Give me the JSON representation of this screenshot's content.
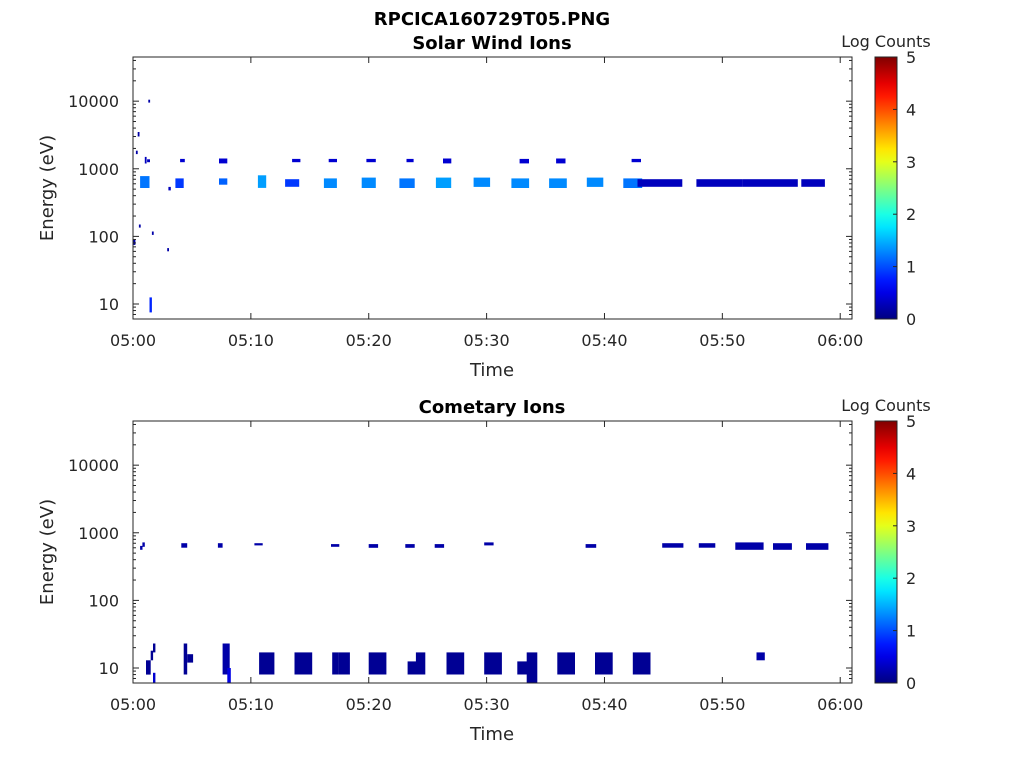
{
  "figure": {
    "filename_title": "RPCICA160729T05.PNG"
  },
  "panels": [
    {
      "id": "solar-wind",
      "title": "Solar Wind Ions",
      "xlabel": "Time",
      "ylabel": "Energy (eV)",
      "xticks": [
        "05:00",
        "05:10",
        "05:20",
        "05:30",
        "05:40",
        "05:50",
        "06:00"
      ],
      "yticks": [
        "10",
        "100",
        "1000",
        "10000"
      ],
      "colorbar": {
        "label": "Log Counts",
        "ticks": [
          "0",
          "1",
          "2",
          "3",
          "4",
          "5"
        ]
      }
    },
    {
      "id": "cometary",
      "title": "Cometary Ions",
      "xlabel": "Time",
      "ylabel": "Energy (eV)",
      "xticks": [
        "05:00",
        "05:10",
        "05:20",
        "05:30",
        "05:40",
        "05:50",
        "06:00"
      ],
      "yticks": [
        "10",
        "100",
        "1000",
        "10000"
      ],
      "colorbar": {
        "label": "Log Counts",
        "ticks": [
          "0",
          "1",
          "2",
          "3",
          "4",
          "5"
        ]
      }
    }
  ],
  "chart_data": [
    {
      "type": "heatmap",
      "title": "Solar Wind Ions",
      "xlabel": "Time",
      "ylabel": "Energy (eV)",
      "xlim_minutes": [
        0,
        61
      ],
      "ylim": [
        6,
        45000
      ],
      "yscale": "log",
      "colormap": "jet",
      "clim": [
        0,
        5
      ],
      "colorbar_label": "Log Counts",
      "cells": [
        {
          "t0": 0.0,
          "t1": 0.2,
          "e0": 75,
          "e1": 90,
          "v": 0.2
        },
        {
          "t0": 0.4,
          "t1": 0.55,
          "e0": 3000,
          "e1": 3500,
          "v": 0.2
        },
        {
          "t0": 0.25,
          "t1": 0.4,
          "e0": 1650,
          "e1": 1850,
          "v": 0.2
        },
        {
          "t0": 0.5,
          "t1": 0.65,
          "e0": 135,
          "e1": 150,
          "v": 0.2
        },
        {
          "t0": 1.3,
          "t1": 1.45,
          "e0": 9500,
          "e1": 10500,
          "v": 0.2
        },
        {
          "t0": 1.0,
          "t1": 1.15,
          "e0": 1200,
          "e1": 1500,
          "v": 0.3
        },
        {
          "t0": 1.2,
          "t1": 1.45,
          "e0": 1250,
          "e1": 1380,
          "v": 0.3
        },
        {
          "t0": 0.6,
          "t1": 1.4,
          "e0": 520,
          "e1": 780,
          "v": 1.2
        },
        {
          "t0": 1.6,
          "t1": 1.75,
          "e0": 105,
          "e1": 118,
          "v": 0.2
        },
        {
          "t0": 1.4,
          "t1": 1.6,
          "e0": 7.5,
          "e1": 12.5,
          "v": 0.8
        },
        {
          "t0": 2.9,
          "t1": 3.05,
          "e0": 60,
          "e1": 67,
          "v": 0.2
        },
        {
          "t0": 3.0,
          "t1": 3.2,
          "e0": 480,
          "e1": 540,
          "v": 0.3
        },
        {
          "t0": 3.6,
          "t1": 4.3,
          "e0": 520,
          "e1": 720,
          "v": 0.9
        },
        {
          "t0": 4.0,
          "t1": 4.4,
          "e0": 1250,
          "e1": 1400,
          "v": 0.4
        },
        {
          "t0": 7.3,
          "t1": 8.0,
          "e0": 1200,
          "e1": 1420,
          "v": 0.4
        },
        {
          "t0": 7.3,
          "t1": 8.0,
          "e0": 580,
          "e1": 720,
          "v": 1.1
        },
        {
          "t0": 10.6,
          "t1": 11.3,
          "e0": 520,
          "e1": 800,
          "v": 1.4
        },
        {
          "t0": 12.9,
          "t1": 14.1,
          "e0": 540,
          "e1": 700,
          "v": 0.9
        },
        {
          "t0": 13.5,
          "t1": 14.2,
          "e0": 1250,
          "e1": 1400,
          "v": 0.4
        },
        {
          "t0": 16.2,
          "t1": 17.3,
          "e0": 520,
          "e1": 720,
          "v": 1.3
        },
        {
          "t0": 16.6,
          "t1": 17.3,
          "e0": 1250,
          "e1": 1400,
          "v": 0.4
        },
        {
          "t0": 19.4,
          "t1": 20.6,
          "e0": 520,
          "e1": 740,
          "v": 1.3
        },
        {
          "t0": 19.8,
          "t1": 20.6,
          "e0": 1250,
          "e1": 1400,
          "v": 0.4
        },
        {
          "t0": 22.6,
          "t1": 23.9,
          "e0": 520,
          "e1": 720,
          "v": 1.2
        },
        {
          "t0": 23.2,
          "t1": 23.8,
          "e0": 1250,
          "e1": 1400,
          "v": 0.4
        },
        {
          "t0": 25.7,
          "t1": 27.0,
          "e0": 520,
          "e1": 740,
          "v": 1.4
        },
        {
          "t0": 26.3,
          "t1": 27.0,
          "e0": 1200,
          "e1": 1420,
          "v": 0.4
        },
        {
          "t0": 28.9,
          "t1": 30.3,
          "e0": 540,
          "e1": 740,
          "v": 1.3
        },
        {
          "t0": 32.1,
          "t1": 33.6,
          "e0": 520,
          "e1": 720,
          "v": 1.3
        },
        {
          "t0": 32.8,
          "t1": 33.6,
          "e0": 1200,
          "e1": 1400,
          "v": 0.4
        },
        {
          "t0": 35.3,
          "t1": 36.8,
          "e0": 520,
          "e1": 720,
          "v": 1.3
        },
        {
          "t0": 35.9,
          "t1": 36.7,
          "e0": 1200,
          "e1": 1420,
          "v": 0.4
        },
        {
          "t0": 38.5,
          "t1": 39.9,
          "e0": 540,
          "e1": 740,
          "v": 1.3
        },
        {
          "t0": 41.6,
          "t1": 43.2,
          "e0": 520,
          "e1": 720,
          "v": 1.2
        },
        {
          "t0": 42.3,
          "t1": 43.1,
          "e0": 1250,
          "e1": 1400,
          "v": 0.4
        },
        {
          "t0": 42.8,
          "t1": 46.6,
          "e0": 540,
          "e1": 700,
          "v": 0.3
        },
        {
          "t0": 47.8,
          "t1": 51.7,
          "e0": 540,
          "e1": 700,
          "v": 0.3
        },
        {
          "t0": 51.7,
          "t1": 56.4,
          "e0": 540,
          "e1": 700,
          "v": 0.3
        },
        {
          "t0": 56.7,
          "t1": 58.7,
          "e0": 540,
          "e1": 700,
          "v": 0.3
        }
      ]
    },
    {
      "type": "heatmap",
      "title": "Cometary Ions",
      "xlabel": "Time",
      "ylabel": "Energy (eV)",
      "xlim_minutes": [
        0,
        61
      ],
      "ylim": [
        6,
        45000
      ],
      "yscale": "log",
      "colormap": "jet",
      "clim": [
        0,
        5
      ],
      "colorbar_label": "Log Counts",
      "cells": [
        {
          "t0": 0.6,
          "t1": 0.8,
          "e0": 560,
          "e1": 640,
          "v": 0.2
        },
        {
          "t0": 0.8,
          "t1": 1.0,
          "e0": 620,
          "e1": 720,
          "v": 0.2
        },
        {
          "t0": 1.1,
          "t1": 1.5,
          "e0": 8.0,
          "e1": 13,
          "v": 0.1
        },
        {
          "t0": 1.5,
          "t1": 1.7,
          "e0": 13,
          "e1": 18,
          "v": 0.1
        },
        {
          "t0": 1.7,
          "t1": 1.9,
          "e0": 17,
          "e1": 23,
          "v": 0.1
        },
        {
          "t0": 1.7,
          "t1": 1.9,
          "e0": 6.0,
          "e1": 8.5,
          "v": 0.4
        },
        {
          "t0": 4.1,
          "t1": 4.6,
          "e0": 600,
          "e1": 700,
          "v": 0.2
        },
        {
          "t0": 4.3,
          "t1": 4.6,
          "e0": 8.0,
          "e1": 23,
          "v": 0.1
        },
        {
          "t0": 4.6,
          "t1": 5.1,
          "e0": 12,
          "e1": 16,
          "v": 0.1
        },
        {
          "t0": 7.2,
          "t1": 7.6,
          "e0": 600,
          "e1": 700,
          "v": 0.2
        },
        {
          "t0": 7.6,
          "t1": 8.2,
          "e0": 8.0,
          "e1": 23,
          "v": 0.2
        },
        {
          "t0": 8.0,
          "t1": 8.3,
          "e0": 6.0,
          "e1": 10,
          "v": 0.5
        },
        {
          "t0": 10.3,
          "t1": 11.0,
          "e0": 650,
          "e1": 700,
          "v": 0.2
        },
        {
          "t0": 10.7,
          "t1": 12.0,
          "e0": 8.0,
          "e1": 17,
          "v": 0.1
        },
        {
          "t0": 13.7,
          "t1": 15.2,
          "e0": 8.0,
          "e1": 17,
          "v": 0.1
        },
        {
          "t0": 16.8,
          "t1": 17.5,
          "e0": 620,
          "e1": 680,
          "v": 0.2
        },
        {
          "t0": 16.9,
          "t1": 17.4,
          "e0": 8.0,
          "e1": 17,
          "v": 0.1
        },
        {
          "t0": 17.4,
          "t1": 18.4,
          "e0": 8.0,
          "e1": 17,
          "v": 0.1
        },
        {
          "t0": 20.0,
          "t1": 20.8,
          "e0": 600,
          "e1": 680,
          "v": 0.2
        },
        {
          "t0": 20.0,
          "t1": 21.5,
          "e0": 8.0,
          "e1": 17,
          "v": 0.1
        },
        {
          "t0": 23.1,
          "t1": 23.9,
          "e0": 600,
          "e1": 680,
          "v": 0.2
        },
        {
          "t0": 23.3,
          "t1": 24.7,
          "e0": 8.0,
          "e1": 12.5,
          "v": 0.1
        },
        {
          "t0": 24.0,
          "t1": 24.8,
          "e0": 8.0,
          "e1": 17,
          "v": 0.1
        },
        {
          "t0": 25.6,
          "t1": 26.4,
          "e0": 600,
          "e1": 680,
          "v": 0.2
        },
        {
          "t0": 26.6,
          "t1": 28.1,
          "e0": 8.0,
          "e1": 17,
          "v": 0.1
        },
        {
          "t0": 29.8,
          "t1": 30.6,
          "e0": 650,
          "e1": 720,
          "v": 0.2
        },
        {
          "t0": 29.8,
          "t1": 31.3,
          "e0": 8.0,
          "e1": 17,
          "v": 0.1
        },
        {
          "t0": 32.6,
          "t1": 33.6,
          "e0": 8.0,
          "e1": 12.5,
          "v": 0.1
        },
        {
          "t0": 33.4,
          "t1": 34.3,
          "e0": 6.0,
          "e1": 17,
          "v": 0.1
        },
        {
          "t0": 36.0,
          "t1": 37.5,
          "e0": 8.0,
          "e1": 17,
          "v": 0.1
        },
        {
          "t0": 38.4,
          "t1": 39.3,
          "e0": 600,
          "e1": 680,
          "v": 0.2
        },
        {
          "t0": 39.2,
          "t1": 40.7,
          "e0": 8.0,
          "e1": 17,
          "v": 0.1
        },
        {
          "t0": 42.4,
          "t1": 43.9,
          "e0": 8.0,
          "e1": 17,
          "v": 0.1
        },
        {
          "t0": 44.9,
          "t1": 46.7,
          "e0": 600,
          "e1": 700,
          "v": 0.2
        },
        {
          "t0": 48.0,
          "t1": 49.4,
          "e0": 600,
          "e1": 700,
          "v": 0.2
        },
        {
          "t0": 51.1,
          "t1": 53.5,
          "e0": 560,
          "e1": 720,
          "v": 0.2
        },
        {
          "t0": 52.9,
          "t1": 53.6,
          "e0": 13,
          "e1": 17,
          "v": 0.2
        },
        {
          "t0": 54.3,
          "t1": 55.9,
          "e0": 560,
          "e1": 700,
          "v": 0.2
        },
        {
          "t0": 57.1,
          "t1": 59.0,
          "e0": 560,
          "e1": 700,
          "v": 0.2
        }
      ]
    }
  ]
}
